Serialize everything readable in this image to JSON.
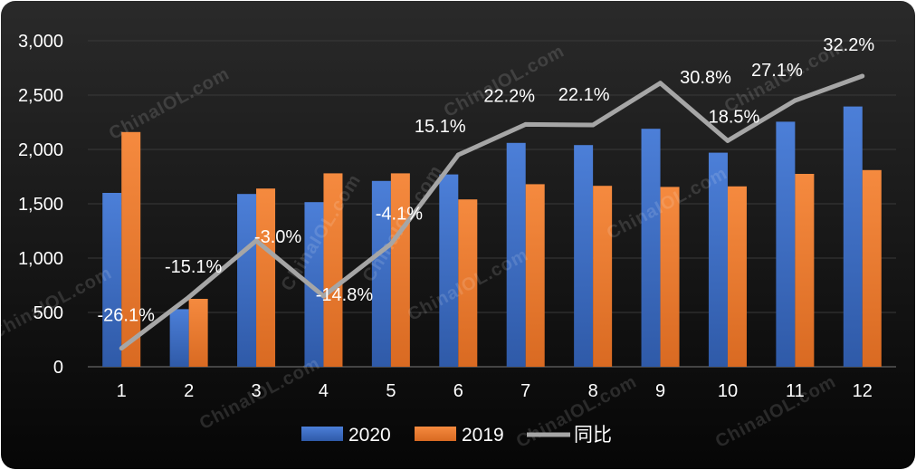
{
  "chart_data": {
    "type": "bar",
    "title": "",
    "xlabel": "",
    "ylabel": "",
    "categories": [
      "1",
      "2",
      "3",
      "4",
      "5",
      "6",
      "7",
      "8",
      "9",
      "10",
      "11",
      "12"
    ],
    "ylim": [
      0,
      3000
    ],
    "yticks": [
      0,
      500,
      1000,
      1500,
      2000,
      2500,
      3000
    ],
    "ytick_labels": [
      "0",
      "500",
      "1,000",
      "1,500",
      "2,000",
      "2,500",
      "3,000"
    ],
    "grid": true,
    "legend_position": "bottom",
    "series": [
      {
        "name": "2020",
        "kind": "bar",
        "color": "#4472c4",
        "values": [
          1600,
          530,
          1590,
          1515,
          1710,
          1770,
          2060,
          2040,
          2190,
          1970,
          2255,
          2395
        ]
      },
      {
        "name": "2019",
        "kind": "bar",
        "color": "#ed7d31",
        "values": [
          2160,
          625,
          1640,
          1780,
          1780,
          1540,
          1680,
          1665,
          1655,
          1660,
          1775,
          1810
        ]
      },
      {
        "name": "同比",
        "kind": "line",
        "color": "#a6a6a6",
        "values": [
          170,
          640,
          1160,
          650,
          1130,
          1950,
          2230,
          2225,
          2610,
          2080,
          2450,
          2675
        ],
        "labels": [
          "-26.1%",
          "-15.1%",
          "-3.0%",
          "-14.8%",
          "-4.1%",
          "15.1%",
          "22.2%",
          "22.1%",
          "30.8%",
          "18.5%",
          "27.1%",
          "32.2%"
        ]
      }
    ]
  },
  "watermark": "ChinaIOL.com",
  "colors": {
    "background": "#161616",
    "gridline": "#3a3a3a",
    "text": "#ffffff"
  }
}
